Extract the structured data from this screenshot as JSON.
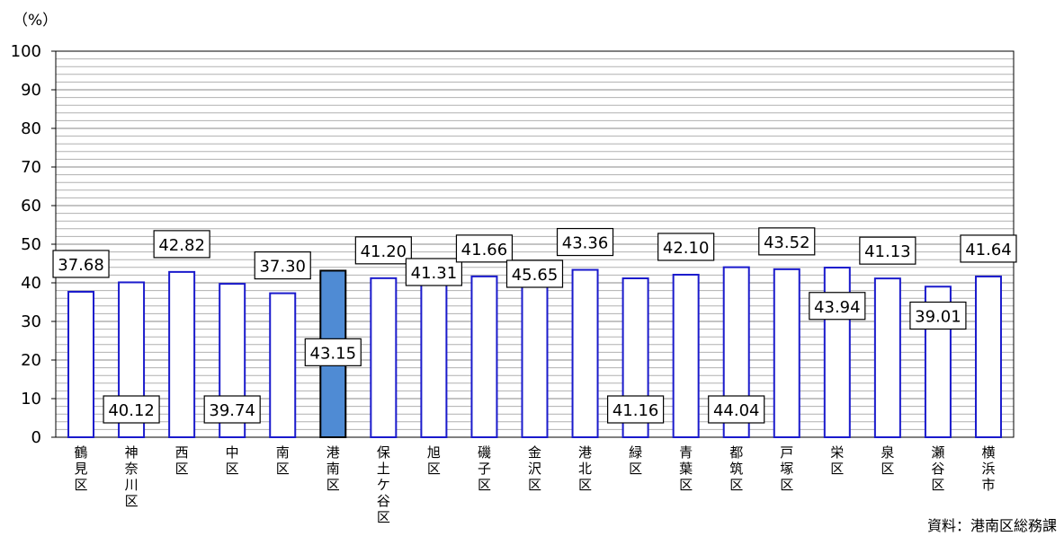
{
  "unit_label": "（%）",
  "source": "資料：港南区総務課",
  "colors": {
    "bar_border": "#1a1acc",
    "highlight_fill": "#4f8bd4",
    "highlight_border": "#000000",
    "grid": "#8a8a8a"
  },
  "chart_data": {
    "type": "bar",
    "categories": [
      [
        "鶴",
        "見",
        "区"
      ],
      [
        "神",
        "奈",
        "川",
        "区"
      ],
      [
        "西",
        "区"
      ],
      [
        "中",
        "区"
      ],
      [
        "南",
        "区"
      ],
      [
        "港",
        "南",
        "区"
      ],
      [
        "保",
        "土",
        "ケ",
        "谷",
        "区"
      ],
      [
        "旭",
        "区"
      ],
      [
        "磯",
        "子",
        "区"
      ],
      [
        "金",
        "沢",
        "区"
      ],
      [
        "港",
        "北",
        "区"
      ],
      [
        "緑",
        "区"
      ],
      [
        "青",
        "葉",
        "区"
      ],
      [
        "都",
        "筑",
        "区"
      ],
      [
        "戸",
        "塚",
        "区"
      ],
      [
        "栄",
        "区"
      ],
      [
        "泉",
        "区"
      ],
      [
        "瀬",
        "谷",
        "区"
      ],
      [
        "横",
        "浜",
        "市"
      ]
    ],
    "values": [
      37.68,
      40.12,
      42.82,
      39.74,
      37.3,
      43.15,
      41.2,
      41.31,
      41.66,
      45.65,
      43.36,
      41.16,
      42.1,
      44.04,
      43.52,
      43.94,
      41.13,
      39.01,
      41.64
    ],
    "labels": [
      "37.68",
      "40.12",
      "42.82",
      "39.74",
      "37.30",
      "43.15",
      "41.20",
      "41.31",
      "41.66",
      "45.65",
      "43.36",
      "41.16",
      "42.10",
      "44.04",
      "43.52",
      "43.94",
      "41.13",
      "39.01",
      "41.64"
    ],
    "highlight_index": 5,
    "ylim": [
      0,
      100
    ],
    "yticks": [
      0,
      10,
      20,
      30,
      40,
      50,
      60,
      70,
      80,
      90,
      100
    ],
    "grid": true
  }
}
